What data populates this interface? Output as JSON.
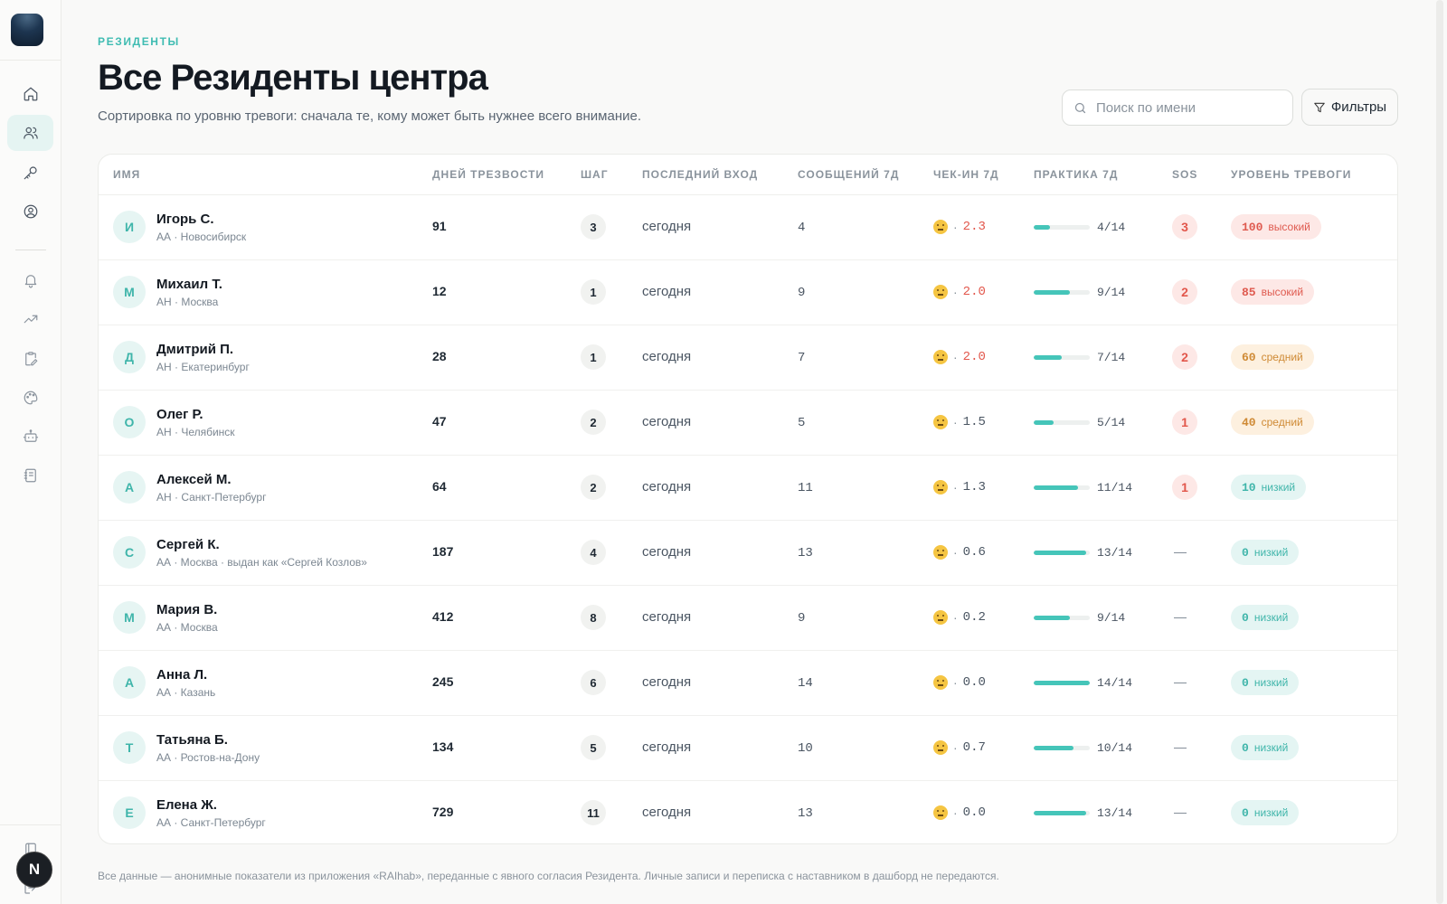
{
  "header": {
    "eyebrow": "РЕЗИДЕНТЫ",
    "title": "Все Резиденты центра",
    "subtitle": "Сортировка по уровню тревоги: сначала те, кому может быть нужнее всего внимание."
  },
  "search": {
    "placeholder": "Поиск по имени",
    "value": ""
  },
  "filters_label": "Фильтры",
  "sidebar": {
    "nav": [
      "home-icon",
      "users-icon",
      "key-icon",
      "user-circle-icon",
      "bell-icon",
      "trending-up-icon",
      "clipboard-edit-icon",
      "palette-icon",
      "bot-icon",
      "notebook-icon"
    ],
    "active": "users-icon",
    "user_initial": "N"
  },
  "columns": [
    "ИМЯ",
    "ДНЕЙ ТРЕЗВОСТИ",
    "ШАГ",
    "ПОСЛЕДНИЙ ВХОД",
    "СООБЩЕНИЙ 7Д",
    "ЧЕК-ИН 7Д",
    "ПРАКТИКА 7Д",
    "SOS",
    "УРОВЕНЬ ТРЕВОГИ"
  ],
  "colors": {
    "accent": "#3fbcb2",
    "high": "#df5a4f",
    "mid": "#cf8a35",
    "low": "#3fb5aa"
  },
  "rows": [
    {
      "initial": "И",
      "name": "Игорь С.",
      "meta": "АА · Новосибирск",
      "days": "91",
      "step": "3",
      "last": "сегодня",
      "messages": "4",
      "checkin": "2.3",
      "checkin_alert": true,
      "practice_done": 4,
      "practice_total": 14,
      "practice": "4/14",
      "sos": "3",
      "level": "100",
      "level_text": "высокий",
      "level_class": "high"
    },
    {
      "initial": "М",
      "name": "Михаил Т.",
      "meta": "АН · Москва",
      "days": "12",
      "step": "1",
      "last": "сегодня",
      "messages": "9",
      "checkin": "2.0",
      "checkin_alert": true,
      "practice_done": 9,
      "practice_total": 14,
      "practice": "9/14",
      "sos": "2",
      "level": "85",
      "level_text": "высокий",
      "level_class": "high"
    },
    {
      "initial": "Д",
      "name": "Дмитрий П.",
      "meta": "АН · Екатеринбург",
      "days": "28",
      "step": "1",
      "last": "сегодня",
      "messages": "7",
      "checkin": "2.0",
      "checkin_alert": true,
      "practice_done": 7,
      "practice_total": 14,
      "practice": "7/14",
      "sos": "2",
      "level": "60",
      "level_text": "средний",
      "level_class": "mid"
    },
    {
      "initial": "О",
      "name": "Олег Р.",
      "meta": "АН · Челябинск",
      "days": "47",
      "step": "2",
      "last": "сегодня",
      "messages": "5",
      "checkin": "1.5",
      "checkin_alert": false,
      "practice_done": 5,
      "practice_total": 14,
      "practice": "5/14",
      "sos": "1",
      "level": "40",
      "level_text": "средний",
      "level_class": "mid"
    },
    {
      "initial": "А",
      "name": "Алексей М.",
      "meta": "АН · Санкт-Петербург",
      "days": "64",
      "step": "2",
      "last": "сегодня",
      "messages": "11",
      "checkin": "1.3",
      "checkin_alert": false,
      "practice_done": 11,
      "practice_total": 14,
      "practice": "11/14",
      "sos": "1",
      "level": "10",
      "level_text": "низкий",
      "level_class": "low"
    },
    {
      "initial": "С",
      "name": "Сергей К.",
      "meta": "АА · Москва · выдан как «Сергей Козлов»",
      "days": "187",
      "step": "4",
      "last": "сегодня",
      "messages": "13",
      "checkin": "0.6",
      "checkin_alert": false,
      "practice_done": 13,
      "practice_total": 14,
      "practice": "13/14",
      "sos": "—",
      "level": "0",
      "level_text": "низкий",
      "level_class": "low"
    },
    {
      "initial": "М",
      "name": "Мария В.",
      "meta": "АА · Москва",
      "days": "412",
      "step": "8",
      "last": "сегодня",
      "messages": "9",
      "checkin": "0.2",
      "checkin_alert": false,
      "practice_done": 9,
      "practice_total": 14,
      "practice": "9/14",
      "sos": "—",
      "level": "0",
      "level_text": "низкий",
      "level_class": "low"
    },
    {
      "initial": "А",
      "name": "Анна Л.",
      "meta": "АА · Казань",
      "days": "245",
      "step": "6",
      "last": "сегодня",
      "messages": "14",
      "checkin": "0.0",
      "checkin_alert": false,
      "practice_done": 14,
      "practice_total": 14,
      "practice": "14/14",
      "sos": "—",
      "level": "0",
      "level_text": "низкий",
      "level_class": "low"
    },
    {
      "initial": "Т",
      "name": "Татьяна Б.",
      "meta": "АА · Ростов-на-Дону",
      "days": "134",
      "step": "5",
      "last": "сегодня",
      "messages": "10",
      "checkin": "0.7",
      "checkin_alert": false,
      "practice_done": 10,
      "practice_total": 14,
      "practice": "10/14",
      "sos": "—",
      "level": "0",
      "level_text": "низкий",
      "level_class": "low"
    },
    {
      "initial": "Е",
      "name": "Елена Ж.",
      "meta": "АА · Санкт-Петербург",
      "days": "729",
      "step": "11",
      "last": "сегодня",
      "messages": "13",
      "checkin": "0.0",
      "checkin_alert": false,
      "practice_done": 13,
      "practice_total": 14,
      "practice": "13/14",
      "sos": "—",
      "level": "0",
      "level_text": "низкий",
      "level_class": "low"
    }
  ],
  "footer": "Все данные — анонимные показатели из приложения «RAIhab», переданные с явного согласия Резидента. Личные записи и переписка с наставником в дашборд не передаются."
}
